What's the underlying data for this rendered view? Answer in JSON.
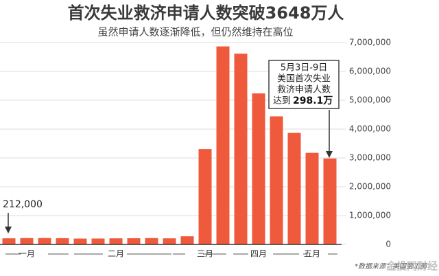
{
  "chart_data": {
    "type": "bar",
    "title": "首次失业救济申请人数突破3648万人",
    "subtitle": "虽然申请人数逐渐降低，但仍然维持在高位",
    "categories": [
      null,
      "一月",
      null,
      null,
      null,
      null,
      "二月",
      null,
      null,
      null,
      null,
      "三月",
      null,
      null,
      "四月",
      null,
      null,
      "五月",
      null
    ],
    "values": [
      212000,
      220000,
      222000,
      216000,
      202000,
      204000,
      211000,
      215000,
      220000,
      211000,
      282000,
      3307000,
      6867000,
      6615000,
      5237000,
      4442000,
      3867000,
      3176000,
      2981000
    ],
    "value_labels": [
      "212,000",
      null,
      null,
      null,
      null,
      null,
      null,
      null,
      null,
      null,
      null,
      null,
      null,
      null,
      null,
      null,
      null,
      null,
      null
    ],
    "color": "#ef5a3c",
    "ylim": [
      0,
      7000000
    ],
    "yticks": [
      0,
      {
        "value": 1000000,
        "label": "1,000,000"
      },
      {
        "value": 2000000,
        "label": "2,000,000"
      },
      {
        "value": 3000000,
        "label": "3,000,000"
      },
      {
        "value": 4000000,
        "label": "4,000,000"
      },
      {
        "value": 5000000,
        "label": "5,000,000"
      },
      {
        "value": 6000000,
        "label": "6,000,000"
      },
      {
        "value": 7000000,
        "label": "7,000,000"
      }
    ],
    "grid": true,
    "callout": {
      "lines": [
        "5月3日-9日",
        "美国首次失业",
        "救济申请人数",
        "达到"
      ],
      "highlight": "298.1万"
    },
    "source": "*数据来源：美国劳工部",
    "watermark": "金投网财经"
  }
}
